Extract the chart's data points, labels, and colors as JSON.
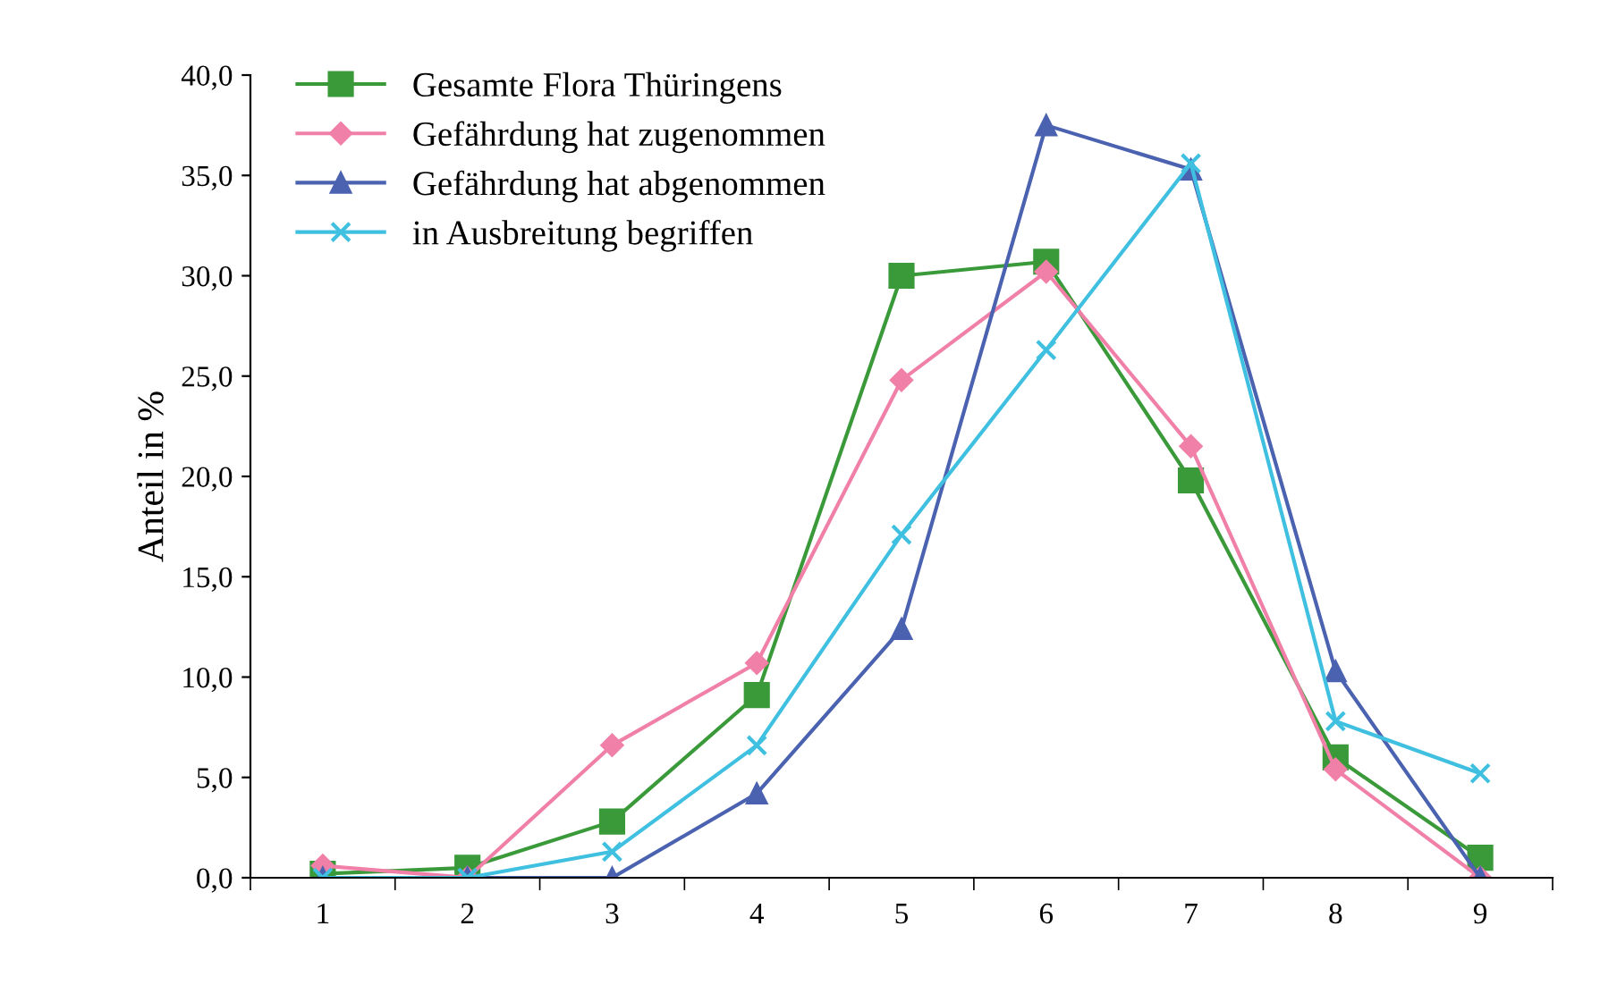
{
  "chart_data": {
    "type": "line",
    "ylabel": "Anteil in %",
    "categories": [
      "1",
      "2",
      "3",
      "4",
      "5",
      "6",
      "7",
      "8",
      "9"
    ],
    "series": [
      {
        "name": "Gesamte Flora Thüringens",
        "color": "#3a9a3a",
        "marker": "square",
        "values": [
          0.2,
          0.5,
          2.8,
          9.1,
          30.0,
          30.7,
          19.8,
          6.0,
          1.0
        ]
      },
      {
        "name": "Gefährdung hat zugenommen",
        "color": "#f080a8",
        "marker": "diamond",
        "values": [
          0.6,
          0.0,
          6.6,
          10.7,
          24.8,
          30.2,
          21.5,
          5.4,
          0.0
        ]
      },
      {
        "name": "Gefährdung hat abgenommen",
        "color": "#4a62b0",
        "marker": "triangle",
        "values": [
          0.0,
          0.0,
          0.0,
          4.2,
          12.4,
          37.5,
          35.3,
          10.3,
          0.0
        ]
      },
      {
        "name": "in Ausbreitung begriffen",
        "color": "#40c0e0",
        "marker": "cross",
        "values": [
          0.0,
          0.0,
          1.3,
          6.6,
          17.1,
          26.3,
          35.6,
          7.8,
          5.2
        ]
      }
    ],
    "ylim": [
      0,
      40
    ],
    "yticks": [
      {
        "value": 0,
        "label": "0,0"
      },
      {
        "value": 5,
        "label": "5,0"
      },
      {
        "value": 10,
        "label": "10,0"
      },
      {
        "value": 15,
        "label": "15,0"
      },
      {
        "value": 20,
        "label": "20,0"
      },
      {
        "value": 25,
        "label": "25,0"
      },
      {
        "value": 30,
        "label": "30,0"
      },
      {
        "value": 35,
        "label": "35,0"
      },
      {
        "value": 40,
        "label": "40,0"
      }
    ],
    "grid": false,
    "legend": "top left",
    "line_style": "solid"
  }
}
